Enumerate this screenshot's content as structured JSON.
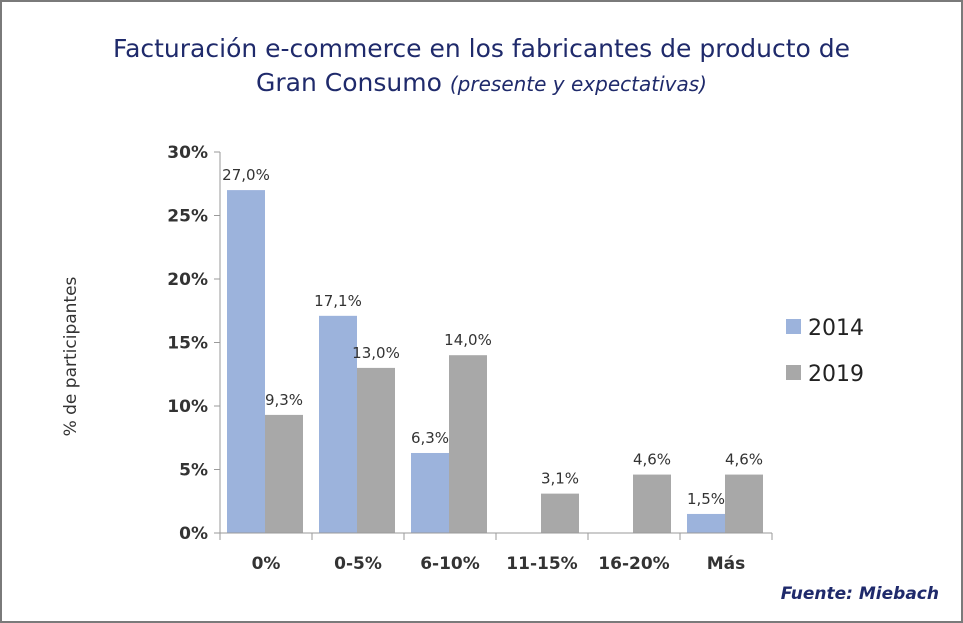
{
  "title": {
    "line1": "Facturación e-commerce en los fabricantes de producto de",
    "line2_main": "Gran Consumo",
    "line2_sub": "(presente y expectativas)"
  },
  "source": "Fuente: Miebach",
  "colors": {
    "series_2014": "#9cb3dc",
    "series_2019": "#a8a8a8",
    "title": "#1f2a6b",
    "axis": "#9a9a9a"
  },
  "chart_data": {
    "type": "bar",
    "ylabel": "% de participantes",
    "xlabel": "",
    "ylim": [
      0,
      30
    ],
    "yticks": [
      0,
      5,
      10,
      15,
      20,
      25,
      30
    ],
    "ytick_labels": [
      "0%",
      "5%",
      "10%",
      "15%",
      "20%",
      "25%",
      "30%"
    ],
    "categories": [
      "0%",
      "0-5%",
      "6-10%",
      "11-15%",
      "16-20%",
      "Más"
    ],
    "series": [
      {
        "name": "2014",
        "values": [
          27.0,
          17.1,
          6.3,
          null,
          null,
          1.5
        ],
        "labels": [
          "27,0%",
          "17,1%",
          "6,3%",
          null,
          null,
          "1,5%"
        ]
      },
      {
        "name": "2019",
        "values": [
          9.3,
          13.0,
          14.0,
          3.1,
          4.6,
          4.6
        ],
        "labels": [
          "9,3%",
          "13,0%",
          "14,0%",
          "3,1%",
          "4,6%",
          "4,6%"
        ]
      }
    ],
    "legend": "right",
    "grid": false
  }
}
